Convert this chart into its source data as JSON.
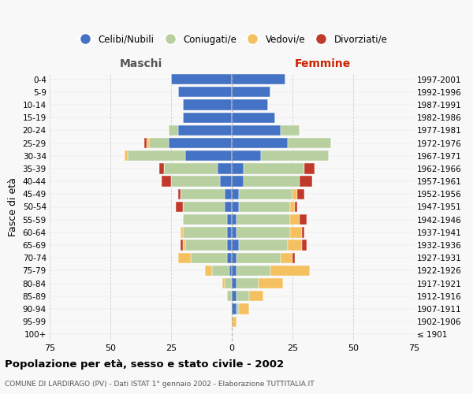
{
  "age_groups": [
    "100+",
    "95-99",
    "90-94",
    "85-89",
    "80-84",
    "75-79",
    "70-74",
    "65-69",
    "60-64",
    "55-59",
    "50-54",
    "45-49",
    "40-44",
    "35-39",
    "30-34",
    "25-29",
    "20-24",
    "15-19",
    "10-14",
    "5-9",
    "0-4"
  ],
  "birth_years": [
    "≤ 1901",
    "1902-1906",
    "1907-1911",
    "1912-1916",
    "1917-1921",
    "1922-1926",
    "1927-1931",
    "1932-1936",
    "1937-1941",
    "1942-1946",
    "1947-1951",
    "1952-1956",
    "1957-1961",
    "1962-1966",
    "1967-1971",
    "1972-1976",
    "1977-1981",
    "1982-1986",
    "1987-1991",
    "1992-1996",
    "1997-2001"
  ],
  "colors": {
    "celibi": "#4472c4",
    "coniugati": "#b8cfa0",
    "vedovi": "#f4c060",
    "divorziati": "#c0392b"
  },
  "maschi": {
    "celibi": [
      0,
      0,
      0,
      0,
      0,
      1,
      2,
      2,
      2,
      2,
      3,
      3,
      5,
      6,
      19,
      26,
      22,
      20,
      20,
      22,
      25
    ],
    "coniugati": [
      0,
      0,
      0,
      2,
      3,
      7,
      15,
      17,
      18,
      18,
      17,
      18,
      20,
      22,
      24,
      8,
      4,
      0,
      0,
      0,
      0
    ],
    "vedovi": [
      0,
      0,
      0,
      0,
      1,
      3,
      5,
      1,
      1,
      0,
      0,
      0,
      0,
      0,
      1,
      1,
      0,
      0,
      0,
      0,
      0
    ],
    "divorziati": [
      0,
      0,
      0,
      0,
      0,
      0,
      0,
      1,
      0,
      0,
      3,
      1,
      4,
      2,
      0,
      1,
      0,
      0,
      0,
      0,
      0
    ]
  },
  "femmine": {
    "celibi": [
      0,
      0,
      2,
      2,
      2,
      2,
      2,
      3,
      2,
      2,
      3,
      3,
      5,
      5,
      12,
      23,
      20,
      18,
      15,
      16,
      22
    ],
    "coniugati": [
      0,
      0,
      1,
      5,
      9,
      14,
      18,
      20,
      22,
      22,
      21,
      22,
      23,
      25,
      28,
      18,
      8,
      0,
      0,
      0,
      0
    ],
    "vedovi": [
      0,
      2,
      4,
      6,
      10,
      16,
      5,
      6,
      5,
      4,
      2,
      2,
      0,
      0,
      0,
      0,
      0,
      0,
      0,
      0,
      0
    ],
    "divorziati": [
      0,
      0,
      0,
      0,
      0,
      0,
      1,
      2,
      1,
      3,
      1,
      3,
      5,
      4,
      0,
      0,
      0,
      0,
      0,
      0,
      0
    ]
  },
  "xlim": 75,
  "title": "Popolazione per età, sesso e stato civile - 2002",
  "subtitle": "COMUNE DI LARDIRAGO (PV) - Dati ISTAT 1° gennaio 2002 - Elaborazione TUTTITALIA.IT",
  "ylabel_left": "Fasce di età",
  "xlabel_left": "Maschi",
  "xlabel_right": "Femmine",
  "bg_color": "#f8f8f8",
  "grid_color": "#cccccc"
}
